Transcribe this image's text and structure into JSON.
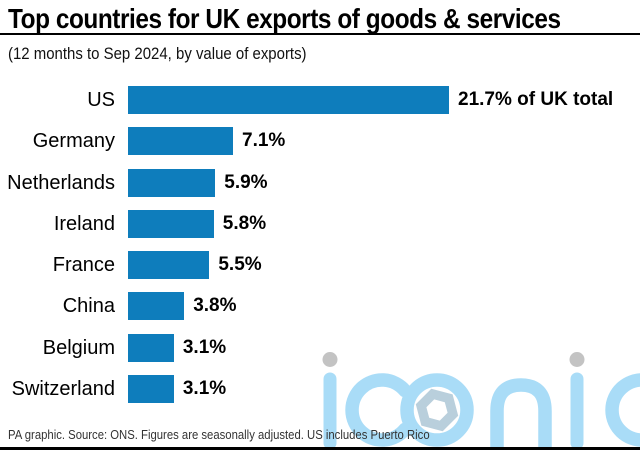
{
  "header": {
    "title": "Top countries for UK exports of goods & services",
    "subtitle": "(12 months to Sep 2024, by value of exports)"
  },
  "chart_data": {
    "type": "bar",
    "orientation": "horizontal",
    "title": "Top countries for UK exports of goods & services",
    "subtitle": "(12 months to Sep 2024, by value of exports)",
    "categories": [
      "US",
      "Germany",
      "Netherlands",
      "Ireland",
      "France",
      "China",
      "Belgium",
      "Switzerland"
    ],
    "values": [
      21.7,
      7.1,
      5.9,
      5.8,
      5.5,
      3.8,
      3.1,
      3.1
    ],
    "value_labels": [
      "21.7% of UK total",
      "7.1%",
      "5.9%",
      "5.8%",
      "5.5%",
      "3.8%",
      "3.1%",
      "3.1%"
    ],
    "unit": "% of UK total exports",
    "xlim": [
      0,
      21.7
    ],
    "grid": false,
    "legend": false,
    "bar_color": "#0e7dbc"
  },
  "footer": {
    "credit": "PA graphic. Source: ONS. Figures are seasonally adjusted. US includes Puerto Rico"
  },
  "watermark": {
    "text": "iconic",
    "letter_color": "#a9dcf7",
    "dot_color": "#c3c3c3",
    "hexagon_color": "#b9cfdc"
  }
}
